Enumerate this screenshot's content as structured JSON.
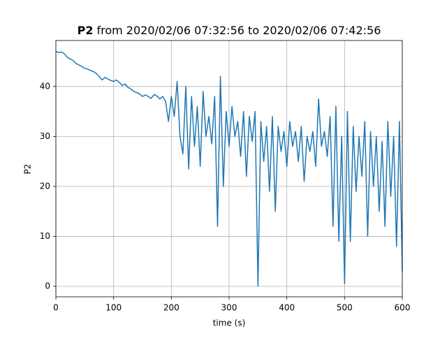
{
  "chart_data": {
    "type": "line",
    "title": [
      "P2",
      "from 2020/02/06 07:32:56 to 2020/02/06 07:42:56"
    ],
    "xlabel": "time (s)",
    "ylabel": "P2",
    "x": [
      0,
      5,
      10,
      15,
      20,
      25,
      30,
      35,
      40,
      45,
      50,
      55,
      60,
      65,
      70,
      75,
      80,
      85,
      90,
      95,
      100,
      105,
      110,
      115,
      120,
      125,
      130,
      135,
      140,
      145,
      150,
      155,
      160,
      165,
      170,
      175,
      180,
      185,
      190,
      195,
      200,
      205,
      210,
      215,
      220,
      225,
      230,
      235,
      240,
      245,
      250,
      255,
      260,
      265,
      270,
      275,
      280,
      285,
      290,
      295,
      300,
      305,
      310,
      315,
      320,
      325,
      330,
      335,
      340,
      345,
      350,
      355,
      360,
      365,
      370,
      375,
      380,
      385,
      390,
      395,
      400,
      405,
      410,
      415,
      420,
      425,
      430,
      435,
      440,
      445,
      450,
      455,
      460,
      465,
      470,
      475,
      480,
      485,
      490,
      495,
      500,
      505,
      510,
      515,
      520,
      525,
      530,
      535,
      540,
      545,
      550,
      555,
      560,
      565,
      570,
      575,
      580,
      585,
      590,
      595,
      600
    ],
    "series": [
      {
        "name": "P2",
        "color": "#1f77b4",
        "values": [
          47,
          46.8,
          46.9,
          46.5,
          45.8,
          45.5,
          45.2,
          44.6,
          44.3,
          44.0,
          43.6,
          43.5,
          43.2,
          43.0,
          42.6,
          42.0,
          41.3,
          41.8,
          41.5,
          41.2,
          41.0,
          41.3,
          40.8,
          40.2,
          40.5,
          39.8,
          39.5,
          39.0,
          38.8,
          38.5,
          38.0,
          38.3,
          38.0,
          37.6,
          38.4,
          38.1,
          37.5,
          38.0,
          37.0,
          33.0,
          38.0,
          34.0,
          41.0,
          30.0,
          26.5,
          40.0,
          23.5,
          38.0,
          28.0,
          36.0,
          24.0,
          39.0,
          30.0,
          34.0,
          28.5,
          38.0,
          12.0,
          42.0,
          20.0,
          35.0,
          28.0,
          36.0,
          30.0,
          33.0,
          26.0,
          35.0,
          22.0,
          34.0,
          29.0,
          35.0,
          0.0,
          33.0,
          25.0,
          32.0,
          19.0,
          34.0,
          15.0,
          32.0,
          27.0,
          31.0,
          24.0,
          33.0,
          28.0,
          31.0,
          25.0,
          32.0,
          21.0,
          30.0,
          27.0,
          31.0,
          24.0,
          37.5,
          28.0,
          31.0,
          26.0,
          34.0,
          12.0,
          36.0,
          9.0,
          30.0,
          0.5,
          35.0,
          9.0,
          32.0,
          19.0,
          30.0,
          22.0,
          33.0,
          10.0,
          31.0,
          20.0,
          30.0,
          15.0,
          29.0,
          12.0,
          33.0,
          18.0,
          30.0,
          8.0,
          33.0,
          3.0
        ]
      }
    ],
    "xlim": [
      0,
      600
    ],
    "ylim": [
      -2.1,
      49.2
    ],
    "xticks": [
      0,
      100,
      200,
      300,
      400,
      500,
      600
    ],
    "yticks": [
      0,
      10,
      20,
      30,
      40
    ],
    "grid": true
  }
}
